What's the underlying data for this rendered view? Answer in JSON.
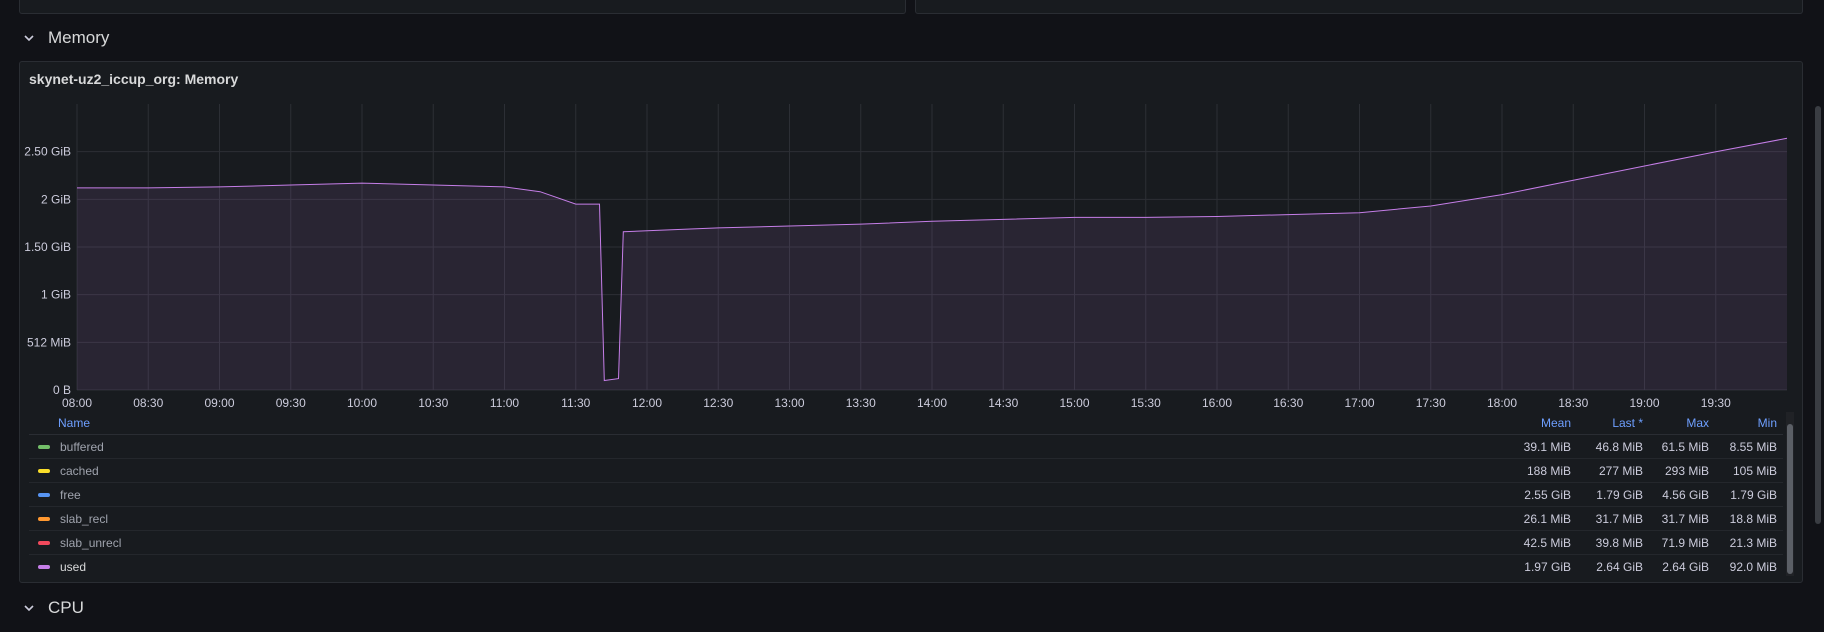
{
  "rows": {
    "memory": {
      "title": "Memory"
    },
    "cpu": {
      "title": "CPU"
    }
  },
  "panel": {
    "title": "skynet-uz2_iccup_org: Memory"
  },
  "colors": {
    "background": "#111217",
    "panel": "#181b1f",
    "accent": "#6e9fff",
    "used": "#c57ee8"
  },
  "chart_data": {
    "type": "area",
    "title": "skynet-uz2_iccup_org: Memory",
    "x_ticks": [
      "08:00",
      "08:30",
      "09:00",
      "09:30",
      "10:00",
      "10:30",
      "11:00",
      "11:30",
      "12:00",
      "12:30",
      "13:00",
      "13:30",
      "14:00",
      "14:30",
      "15:00",
      "15:30",
      "16:00",
      "16:30",
      "17:00",
      "17:30",
      "18:00",
      "18:30",
      "19:00",
      "19:30"
    ],
    "y_ticks": [
      "0 B",
      "512 MiB",
      "1 GiB",
      "1.50 GiB",
      "2 GiB",
      "2.50 GiB"
    ],
    "y_unit": "GiB",
    "ylim": [
      0,
      3
    ],
    "xlim": [
      "08:00",
      "20:00"
    ],
    "grid": true,
    "series": [
      {
        "name": "used",
        "color": "#c57ee8",
        "x": [
          "08:00",
          "08:30",
          "09:00",
          "09:30",
          "10:00",
          "10:30",
          "11:00",
          "11:15",
          "11:30",
          "11:40",
          "11:42",
          "11:48",
          "11:50",
          "12:00",
          "12:30",
          "13:00",
          "13:30",
          "14:00",
          "14:30",
          "15:00",
          "15:30",
          "16:00",
          "16:30",
          "17:00",
          "17:30",
          "18:00",
          "18:30",
          "19:00",
          "19:30",
          "20:00"
        ],
        "y": [
          2.12,
          2.12,
          2.13,
          2.15,
          2.17,
          2.15,
          2.13,
          2.08,
          1.95,
          1.95,
          0.1,
          0.12,
          1.66,
          1.67,
          1.7,
          1.72,
          1.74,
          1.77,
          1.79,
          1.81,
          1.81,
          1.82,
          1.84,
          1.86,
          1.93,
          2.05,
          2.2,
          2.35,
          2.5,
          2.64
        ]
      }
    ]
  },
  "legend": {
    "headers": {
      "name": "Name",
      "mean": "Mean",
      "last": "Last *",
      "max": "Max",
      "min": "Min"
    },
    "rows": [
      {
        "name": "buffered",
        "color": "#73bf69",
        "mean": "39.1 MiB",
        "last": "46.8 MiB",
        "max": "61.5 MiB",
        "min": "8.55 MiB"
      },
      {
        "name": "cached",
        "color": "#fade2a",
        "mean": "188 MiB",
        "last": "277 MiB",
        "max": "293 MiB",
        "min": "105 MiB"
      },
      {
        "name": "free",
        "color": "#5794f2",
        "mean": "2.55 GiB",
        "last": "1.79 GiB",
        "max": "4.56 GiB",
        "min": "1.79 GiB"
      },
      {
        "name": "slab_recl",
        "color": "#ff9830",
        "mean": "26.1 MiB",
        "last": "31.7 MiB",
        "max": "31.7 MiB",
        "min": "18.8 MiB"
      },
      {
        "name": "slab_unrecl",
        "color": "#f2495c",
        "mean": "42.5 MiB",
        "last": "39.8 MiB",
        "max": "71.9 MiB",
        "min": "21.3 MiB"
      },
      {
        "name": "used",
        "color": "#c57ee8",
        "mean": "1.97 GiB",
        "last": "2.64 GiB",
        "max": "2.64 GiB",
        "min": "92.0 MiB"
      }
    ]
  }
}
